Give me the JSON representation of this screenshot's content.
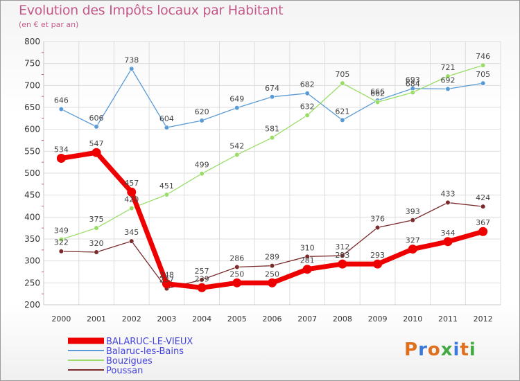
{
  "title": "Evolution des Impôts locaux par Habitant",
  "subtitle": "(en € et par an)",
  "logo": "Proxiti",
  "chart_data": {
    "type": "line",
    "title": "Evolution des Impôts locaux par Habitant",
    "subtitle": "(en € et par an)",
    "xlabel": "",
    "ylabel": "",
    "ylim": [
      200,
      800
    ],
    "yticks": [
      200,
      250,
      300,
      350,
      400,
      450,
      500,
      550,
      600,
      650,
      700,
      750,
      800
    ],
    "categories": [
      "2000",
      "2001",
      "2002",
      "2003",
      "2004",
      "2005",
      "2006",
      "2007",
      "2008",
      "2009",
      "2010",
      "2011",
      "2012"
    ],
    "grid": true,
    "legend_position": "bottom-left",
    "series": [
      {
        "name": "BALARUC-LE-VIEUX",
        "color": "#ee0000",
        "emphasis": true,
        "values": [
          534,
          547,
          457,
          248,
          239,
          250,
          250,
          281,
          293,
          293,
          327,
          344,
          367
        ]
      },
      {
        "name": "Balaruc-les-Bains",
        "color": "#5b9bd5",
        "emphasis": false,
        "values": [
          646,
          606,
          738,
          604,
          620,
          649,
          674,
          682,
          621,
          666,
          693,
          692,
          705
        ]
      },
      {
        "name": "Bouzigues",
        "color": "#99dd66",
        "emphasis": false,
        "values": [
          349,
          375,
          420,
          451,
          499,
          542,
          581,
          632,
          705,
          662,
          684,
          721,
          746
        ]
      },
      {
        "name": "Poussan",
        "color": "#7a2a2a",
        "emphasis": false,
        "values": [
          322,
          320,
          345,
          237,
          257,
          286,
          289,
          310,
          312,
          376,
          393,
          433,
          424
        ]
      }
    ]
  }
}
